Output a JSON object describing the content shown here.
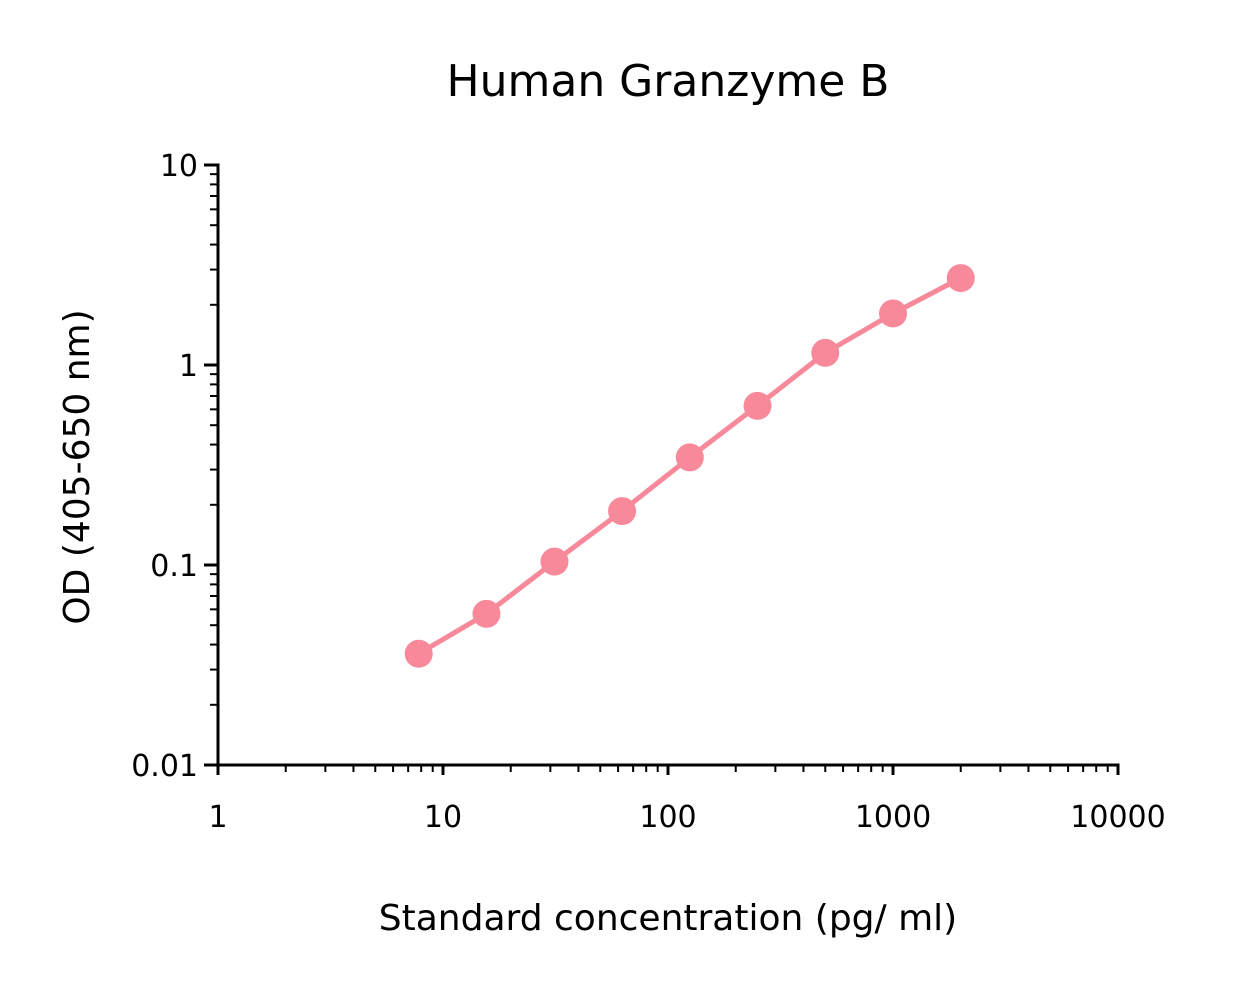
{
  "chart_data": {
    "type": "line",
    "title": "Human Granzyme B",
    "xlabel": "Standard concentration (pg/ ml)",
    "ylabel": "OD (405-650 nm)",
    "xscale": "log",
    "yscale": "log",
    "xlim": [
      1,
      10000
    ],
    "ylim": [
      0.01,
      10
    ],
    "x_ticks": [
      1,
      10,
      100,
      1000,
      10000
    ],
    "x_tick_labels": [
      "1",
      "10",
      "100",
      "1000",
      "10000"
    ],
    "y_ticks": [
      0.01,
      0.1,
      1,
      10
    ],
    "y_tick_labels": [
      "0.01",
      "0.1",
      "1",
      "10"
    ],
    "grid": false,
    "legend": false,
    "color": "#F7899A",
    "series": [
      {
        "x": [
          7.8,
          15.6,
          31.3,
          62.5,
          125,
          250,
          500,
          1000,
          2000
        ],
        "y": [
          0.036,
          0.057,
          0.104,
          0.186,
          0.345,
          0.625,
          1.15,
          1.81,
          2.72
        ]
      }
    ]
  }
}
